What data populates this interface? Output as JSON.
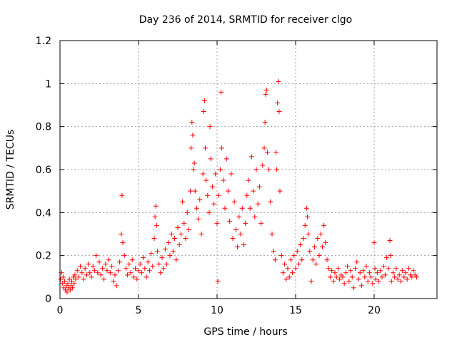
{
  "chart_data": {
    "type": "scatter",
    "title": "Day 236 of 2014, SRMTID for receiver clgo",
    "xlabel": "GPS time / hours",
    "ylabel": "SRMTID / TECUs",
    "xlim": [
      0,
      24
    ],
    "ylim": [
      0,
      1.2
    ],
    "xticks": [
      0,
      5,
      10,
      15,
      20
    ],
    "xtick_labels": [
      "0",
      "5",
      "10",
      "15",
      "20"
    ],
    "yticks": [
      0,
      0.2,
      0.4,
      0.6,
      0.8,
      1,
      1.2
    ],
    "ytick_labels": [
      "0",
      "0.2",
      "0.4",
      "0.6",
      "0.8",
      "1",
      "1.2"
    ],
    "grid": true,
    "marker": "+",
    "color": "#ff0000",
    "series": [
      {
        "name": "SRMTID",
        "points": [
          [
            0.05,
            0.09
          ],
          [
            0.1,
            0.12
          ],
          [
            0.15,
            0.07
          ],
          [
            0.2,
            0.1
          ],
          [
            0.25,
            0.05
          ],
          [
            0.3,
            0.08
          ],
          [
            0.35,
            0.04
          ],
          [
            0.4,
            0.06
          ],
          [
            0.45,
            0.03
          ],
          [
            0.5,
            0.07
          ],
          [
            0.55,
            0.05
          ],
          [
            0.6,
            0.09
          ],
          [
            0.65,
            0.04
          ],
          [
            0.7,
            0.06
          ],
          [
            0.75,
            0.08
          ],
          [
            0.8,
            0.05
          ],
          [
            0.85,
            0.1
          ],
          [
            0.9,
            0.07
          ],
          [
            0.95,
            0.11
          ],
          [
            1.0,
            0.09
          ],
          [
            1.1,
            0.13
          ],
          [
            1.2,
            0.1
          ],
          [
            1.3,
            0.15
          ],
          [
            1.4,
            0.12
          ],
          [
            1.5,
            0.09
          ],
          [
            1.6,
            0.14
          ],
          [
            1.7,
            0.11
          ],
          [
            1.8,
            0.16
          ],
          [
            1.9,
            0.12
          ],
          [
            2.0,
            0.1
          ],
          [
            2.1,
            0.15
          ],
          [
            2.2,
            0.13
          ],
          [
            2.3,
            0.2
          ],
          [
            2.4,
            0.12
          ],
          [
            2.5,
            0.17
          ],
          [
            2.6,
            0.11
          ],
          [
            2.7,
            0.14
          ],
          [
            2.8,
            0.09
          ],
          [
            2.9,
            0.16
          ],
          [
            3.0,
            0.13
          ],
          [
            3.1,
            0.18
          ],
          [
            3.2,
            0.12
          ],
          [
            3.3,
            0.15
          ],
          [
            3.4,
            0.08
          ],
          [
            3.5,
            0.11
          ],
          [
            3.6,
            0.06
          ],
          [
            3.7,
            0.13
          ],
          [
            3.8,
            0.17
          ],
          [
            3.9,
            0.3
          ],
          [
            3.95,
            0.48
          ],
          [
            4.0,
            0.26
          ],
          [
            4.1,
            0.2
          ],
          [
            4.2,
            0.14
          ],
          [
            4.3,
            0.11
          ],
          [
            4.4,
            0.16
          ],
          [
            4.5,
            0.12
          ],
          [
            4.6,
            0.18
          ],
          [
            4.7,
            0.1
          ],
          [
            4.8,
            0.14
          ],
          [
            4.9,
            0.09
          ],
          [
            5.0,
            0.13
          ],
          [
            5.1,
            0.16
          ],
          [
            5.2,
            0.12
          ],
          [
            5.3,
            0.19
          ],
          [
            5.4,
            0.14
          ],
          [
            5.5,
            0.1
          ],
          [
            5.6,
            0.17
          ],
          [
            5.7,
            0.13
          ],
          [
            5.8,
            0.21
          ],
          [
            5.9,
            0.15
          ],
          [
            6.0,
            0.28
          ],
          [
            6.05,
            0.38
          ],
          [
            6.1,
            0.43
          ],
          [
            6.15,
            0.34
          ],
          [
            6.2,
            0.22
          ],
          [
            6.3,
            0.16
          ],
          [
            6.4,
            0.12
          ],
          [
            6.5,
            0.19
          ],
          [
            6.6,
            0.14
          ],
          [
            6.7,
            0.23
          ],
          [
            6.8,
            0.16
          ],
          [
            6.9,
            0.26
          ],
          [
            7.0,
            0.2
          ],
          [
            7.1,
            0.3
          ],
          [
            7.2,
            0.22
          ],
          [
            7.3,
            0.28
          ],
          [
            7.4,
            0.18
          ],
          [
            7.5,
            0.33
          ],
          [
            7.6,
            0.25
          ],
          [
            7.7,
            0.3
          ],
          [
            7.8,
            0.45
          ],
          [
            7.9,
            0.35
          ],
          [
            8.0,
            0.28
          ],
          [
            8.1,
            0.4
          ],
          [
            8.2,
            0.32
          ],
          [
            8.3,
            0.5
          ],
          [
            8.35,
            0.7
          ],
          [
            8.4,
            0.82
          ],
          [
            8.45,
            0.76
          ],
          [
            8.5,
            0.6
          ],
          [
            8.55,
            0.63
          ],
          [
            8.6,
            0.5
          ],
          [
            8.7,
            0.42
          ],
          [
            8.8,
            0.37
          ],
          [
            8.9,
            0.46
          ],
          [
            9.0,
            0.3
          ],
          [
            9.1,
            0.58
          ],
          [
            9.15,
            0.87
          ],
          [
            9.2,
            0.92
          ],
          [
            9.25,
            0.7
          ],
          [
            9.3,
            0.55
          ],
          [
            9.4,
            0.48
          ],
          [
            9.5,
            0.4
          ],
          [
            9.55,
            0.8
          ],
          [
            9.6,
            0.65
          ],
          [
            9.7,
            0.52
          ],
          [
            9.8,
            0.44
          ],
          [
            9.9,
            0.58
          ],
          [
            10.0,
            0.35
          ],
          [
            10.05,
            0.08
          ],
          [
            10.1,
            0.48
          ],
          [
            10.2,
            0.6
          ],
          [
            10.25,
            0.96
          ],
          [
            10.3,
            0.7
          ],
          [
            10.4,
            0.55
          ],
          [
            10.5,
            0.42
          ],
          [
            10.6,
            0.65
          ],
          [
            10.7,
            0.5
          ],
          [
            10.8,
            0.36
          ],
          [
            10.9,
            0.58
          ],
          [
            11.0,
            0.28
          ],
          [
            11.1,
            0.45
          ],
          [
            11.2,
            0.32
          ],
          [
            11.3,
            0.24
          ],
          [
            11.4,
            0.38
          ],
          [
            11.5,
            0.3
          ],
          [
            11.6,
            0.42
          ],
          [
            11.7,
            0.25
          ],
          [
            11.8,
            0.35
          ],
          [
            11.9,
            0.48
          ],
          [
            12.0,
            0.55
          ],
          [
            12.1,
            0.42
          ],
          [
            12.2,
            0.66
          ],
          [
            12.3,
            0.5
          ],
          [
            12.4,
            0.38
          ],
          [
            12.5,
            0.6
          ],
          [
            12.6,
            0.44
          ],
          [
            12.7,
            0.52
          ],
          [
            12.8,
            0.35
          ],
          [
            12.9,
            0.62
          ],
          [
            13.0,
            0.7
          ],
          [
            13.05,
            0.82
          ],
          [
            13.1,
            0.95
          ],
          [
            13.15,
            0.97
          ],
          [
            13.2,
            0.68
          ],
          [
            13.3,
            0.6
          ],
          [
            13.4,
            0.45
          ],
          [
            13.5,
            0.3
          ],
          [
            13.6,
            0.22
          ],
          [
            13.7,
            0.18
          ],
          [
            13.75,
            0.68
          ],
          [
            13.8,
            0.6
          ],
          [
            13.85,
            0.91
          ],
          [
            13.9,
            1.01
          ],
          [
            13.95,
            0.87
          ],
          [
            14.0,
            0.5
          ],
          [
            14.1,
            0.2
          ],
          [
            14.2,
            0.12
          ],
          [
            14.3,
            0.16
          ],
          [
            14.4,
            0.09
          ],
          [
            14.5,
            0.14
          ],
          [
            14.6,
            0.1
          ],
          [
            14.7,
            0.18
          ],
          [
            14.8,
            0.12
          ],
          [
            14.9,
            0.2
          ],
          [
            15.0,
            0.14
          ],
          [
            15.1,
            0.22
          ],
          [
            15.2,
            0.16
          ],
          [
            15.3,
            0.25
          ],
          [
            15.4,
            0.18
          ],
          [
            15.5,
            0.28
          ],
          [
            15.6,
            0.34
          ],
          [
            15.7,
            0.42
          ],
          [
            15.75,
            0.38
          ],
          [
            15.8,
            0.3
          ],
          [
            15.9,
            0.22
          ],
          [
            16.0,
            0.08
          ],
          [
            16.1,
            0.18
          ],
          [
            16.2,
            0.24
          ],
          [
            16.3,
            0.16
          ],
          [
            16.4,
            0.28
          ],
          [
            16.5,
            0.2
          ],
          [
            16.6,
            0.3
          ],
          [
            16.7,
            0.24
          ],
          [
            16.8,
            0.34
          ],
          [
            16.9,
            0.26
          ],
          [
            17.0,
            0.18
          ],
          [
            17.1,
            0.14
          ],
          [
            17.2,
            0.1
          ],
          [
            17.3,
            0.13
          ],
          [
            17.4,
            0.08
          ],
          [
            17.5,
            0.12
          ],
          [
            17.6,
            0.1
          ],
          [
            17.7,
            0.14
          ],
          [
            17.8,
            0.09
          ],
          [
            17.9,
            0.11
          ],
          [
            18.0,
            0.1
          ],
          [
            18.1,
            0.07
          ],
          [
            18.2,
            0.12
          ],
          [
            18.3,
            0.15
          ],
          [
            18.4,
            0.08
          ],
          [
            18.5,
            0.13
          ],
          [
            18.6,
            0.1
          ],
          [
            18.7,
            0.05
          ],
          [
            18.8,
            0.14
          ],
          [
            18.9,
            0.17
          ],
          [
            19.0,
            0.09
          ],
          [
            19.1,
            0.12
          ],
          [
            19.2,
            0.06
          ],
          [
            19.3,
            0.13
          ],
          [
            19.4,
            0.1
          ],
          [
            19.5,
            0.15
          ],
          [
            19.6,
            0.08
          ],
          [
            19.7,
            0.12
          ],
          [
            19.8,
            0.1
          ],
          [
            19.9,
            0.07
          ],
          [
            20.0,
            0.26
          ],
          [
            20.05,
            0.14
          ],
          [
            20.1,
            0.09
          ],
          [
            20.2,
            0.12
          ],
          [
            20.3,
            0.08
          ],
          [
            20.4,
            0.13
          ],
          [
            20.5,
            0.1
          ],
          [
            20.6,
            0.15
          ],
          [
            20.7,
            0.11
          ],
          [
            20.8,
            0.19
          ],
          [
            20.9,
            0.14
          ],
          [
            21.0,
            0.27
          ],
          [
            21.05,
            0.2
          ],
          [
            21.1,
            0.08
          ],
          [
            21.2,
            0.12
          ],
          [
            21.3,
            0.1
          ],
          [
            21.4,
            0.14
          ],
          [
            21.5,
            0.09
          ],
          [
            21.6,
            0.11
          ],
          [
            21.7,
            0.08
          ],
          [
            21.8,
            0.13
          ],
          [
            21.9,
            0.1
          ],
          [
            22.0,
            0.12
          ],
          [
            22.1,
            0.09
          ],
          [
            22.2,
            0.14
          ],
          [
            22.3,
            0.11
          ],
          [
            22.4,
            0.1
          ],
          [
            22.5,
            0.13
          ],
          [
            22.6,
            0.11
          ],
          [
            22.7,
            0.1
          ]
        ]
      }
    ]
  }
}
